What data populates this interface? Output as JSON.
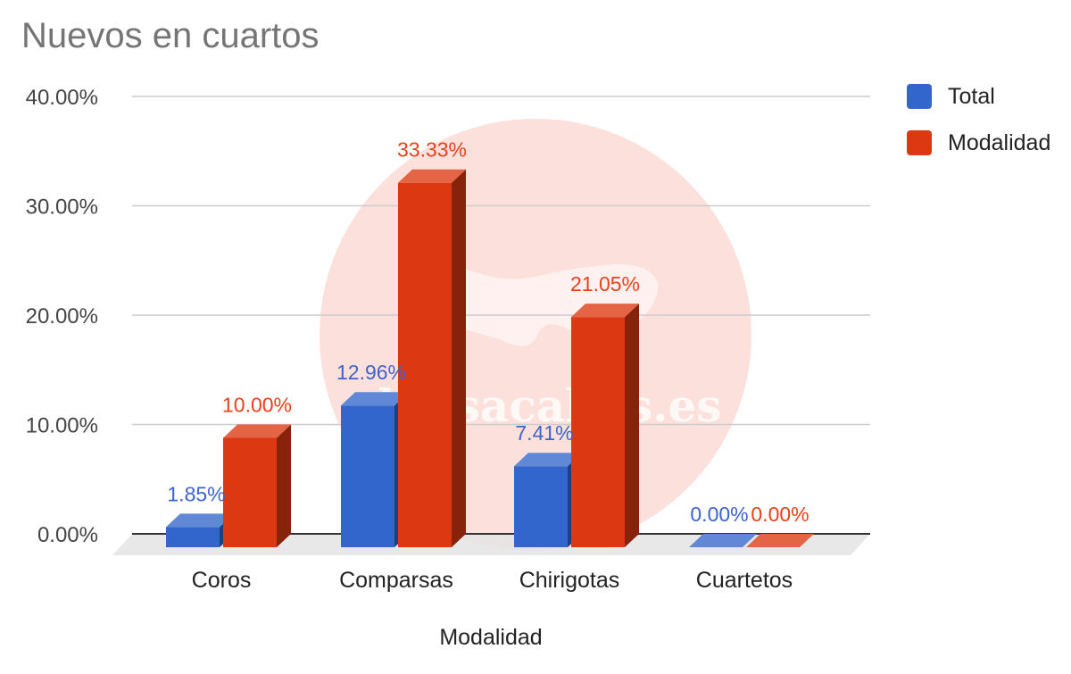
{
  "chart_data": {
    "type": "bar",
    "title": "Nuevos en cuartos",
    "xlabel": "Modalidad",
    "ylabel": "",
    "categories": [
      "Coros",
      "Comparsas",
      "Chirigotas",
      "Cuartetos"
    ],
    "series": [
      {
        "name": "Total",
        "values": [
          1.85,
          12.96,
          7.41,
          0.0
        ],
        "labels": [
          "1.85%",
          "12.96%",
          "7.41%",
          "0.00%"
        ],
        "color": "#3366cc",
        "label_color": "#3e63c9"
      },
      {
        "name": "Modalidad",
        "values": [
          10.0,
          33.33,
          21.05,
          0.0
        ],
        "labels": [
          "10.00%",
          "33.33%",
          "21.05%",
          "0.00%"
        ],
        "color": "#dc3912",
        "label_color": "#e8421b"
      }
    ],
    "y_ticks": [
      {
        "value": 0,
        "label": "0.00%"
      },
      {
        "value": 10,
        "label": "10.00%"
      },
      {
        "value": 20,
        "label": "20.00%"
      },
      {
        "value": 30,
        "label": "30.00%"
      },
      {
        "value": 40,
        "label": "40.00%"
      }
    ],
    "ylim": [
      0,
      40
    ],
    "grid": true,
    "legend_position": "right",
    "bar_style": "3d"
  },
  "watermark": {
    "text": "elpasacalles.es",
    "color": "#f3b3a6"
  }
}
